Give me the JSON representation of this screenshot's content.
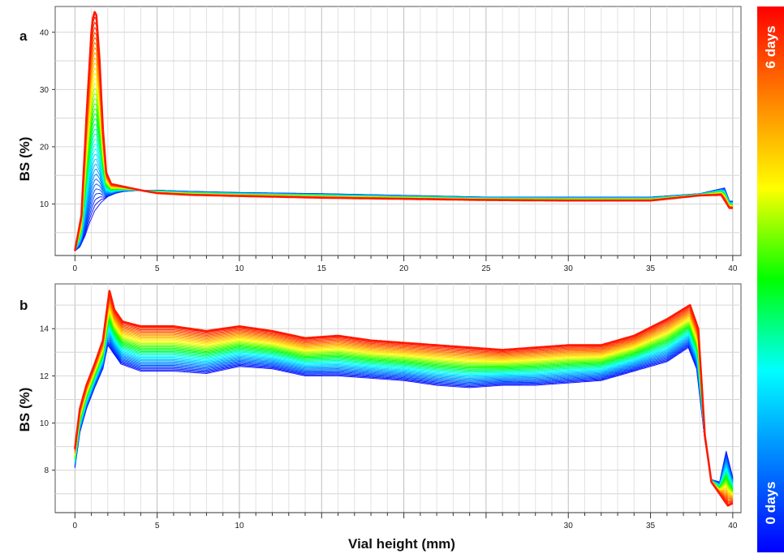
{
  "chart_data": [
    {
      "panel": "a",
      "type": "line",
      "ylabel": "BS (%)",
      "xlabel": "",
      "xlim": [
        -1.2,
        40.5
      ],
      "ylim": [
        1,
        44.5
      ],
      "xticks": [
        0,
        5,
        10,
        15,
        20,
        25,
        30,
        35,
        40
      ],
      "yticks": [
        10,
        20,
        30,
        40
      ],
      "grid": true,
      "curve_count": 40,
      "first_curve": {
        "label": "0 days",
        "color": "#1a1aff",
        "points": [
          [
            0,
            1.8
          ],
          [
            0.3,
            2.5
          ],
          [
            0.6,
            4.3
          ],
          [
            0.9,
            6.8
          ],
          [
            1.2,
            8.8
          ],
          [
            1.6,
            10.3
          ],
          [
            2.0,
            11.3
          ],
          [
            2.5,
            11.9
          ],
          [
            3.0,
            12.2
          ],
          [
            4.0,
            12.4
          ],
          [
            5,
            12.4
          ],
          [
            7,
            12.2
          ],
          [
            10,
            12.0
          ],
          [
            15,
            11.8
          ],
          [
            20,
            11.5
          ],
          [
            25,
            11.2
          ],
          [
            30,
            11.2
          ],
          [
            35,
            11.2
          ],
          [
            38,
            11.8
          ],
          [
            39.5,
            12.8
          ],
          [
            39.8,
            10.5
          ]
        ]
      },
      "last_curve": {
        "label": "6 days",
        "color": "#ff1a00",
        "points": [
          [
            0,
            1.8
          ],
          [
            0.4,
            8
          ],
          [
            0.7,
            25
          ],
          [
            1.0,
            40
          ],
          [
            1.15,
            43.8
          ],
          [
            1.3,
            43
          ],
          [
            1.5,
            35
          ],
          [
            1.7,
            23
          ],
          [
            1.9,
            15.5
          ],
          [
            2.2,
            13.5
          ],
          [
            3,
            13
          ],
          [
            4,
            12.4
          ],
          [
            5,
            11.9
          ],
          [
            7,
            11.6
          ],
          [
            10,
            11.4
          ],
          [
            15,
            11.1
          ],
          [
            20,
            10.9
          ],
          [
            25,
            10.7
          ],
          [
            30,
            10.6
          ],
          [
            35,
            10.6
          ],
          [
            38,
            11.5
          ],
          [
            39.3,
            11.6
          ],
          [
            39.8,
            9.3
          ]
        ]
      }
    },
    {
      "panel": "b",
      "type": "line",
      "ylabel": "BS (%)",
      "xlabel": "Vial height (mm)",
      "xlim": [
        -1.2,
        40.5
      ],
      "ylim": [
        6.2,
        15.9
      ],
      "xticks": [
        0,
        5,
        10,
        30,
        35,
        40
      ],
      "yticks": [
        8,
        10,
        12,
        14
      ],
      "grid": true,
      "curve_count": 40,
      "first_curve": {
        "label": "0 days",
        "color": "#1a1aff",
        "points": [
          [
            0,
            8.1
          ],
          [
            0.3,
            9.6
          ],
          [
            0.7,
            10.6
          ],
          [
            1.2,
            11.5
          ],
          [
            1.7,
            12.3
          ],
          [
            2.0,
            13.3
          ],
          [
            2.3,
            13.0
          ],
          [
            2.8,
            12.5
          ],
          [
            4,
            12.2
          ],
          [
            6,
            12.2
          ],
          [
            8,
            12.1
          ],
          [
            10,
            12.4
          ],
          [
            12,
            12.3
          ],
          [
            14,
            12.0
          ],
          [
            16,
            12.0
          ],
          [
            18,
            11.9
          ],
          [
            20,
            11.8
          ],
          [
            22,
            11.6
          ],
          [
            24,
            11.5
          ],
          [
            26,
            11.6
          ],
          [
            28,
            11.6
          ],
          [
            30,
            11.7
          ],
          [
            32,
            11.8
          ],
          [
            34,
            12.2
          ],
          [
            36,
            12.6
          ],
          [
            37.3,
            13.2
          ],
          [
            37.8,
            12.3
          ],
          [
            38.3,
            9.3
          ],
          [
            38.7,
            7.6
          ],
          [
            39.2,
            7.5
          ],
          [
            39.6,
            8.8
          ],
          [
            40,
            7.7
          ]
        ]
      },
      "last_curve": {
        "label": "6 days",
        "color": "#ff1a00",
        "points": [
          [
            0,
            8.9
          ],
          [
            0.3,
            10.6
          ],
          [
            0.7,
            11.6
          ],
          [
            1.2,
            12.5
          ],
          [
            1.7,
            13.5
          ],
          [
            2.1,
            15.6
          ],
          [
            2.4,
            14.8
          ],
          [
            2.9,
            14.3
          ],
          [
            4,
            14.1
          ],
          [
            6,
            14.1
          ],
          [
            8,
            13.9
          ],
          [
            10,
            14.1
          ],
          [
            12,
            13.9
          ],
          [
            14,
            13.6
          ],
          [
            16,
            13.7
          ],
          [
            18,
            13.5
          ],
          [
            20,
            13.4
          ],
          [
            22,
            13.3
          ],
          [
            24,
            13.2
          ],
          [
            26,
            13.1
          ],
          [
            28,
            13.2
          ],
          [
            30,
            13.3
          ],
          [
            32,
            13.3
          ],
          [
            34,
            13.7
          ],
          [
            36,
            14.4
          ],
          [
            37.4,
            15.0
          ],
          [
            37.9,
            14.0
          ],
          [
            38.3,
            9.5
          ],
          [
            38.7,
            7.5
          ],
          [
            39.2,
            7.0
          ],
          [
            39.7,
            6.5
          ],
          [
            40,
            6.6
          ]
        ]
      }
    }
  ],
  "colorbar": {
    "top_label": "6 days",
    "bottom_label": "0 days",
    "colors": [
      "#ff0000",
      "#ff8000",
      "#ffff00",
      "#00ff00",
      "#00ffff",
      "#0080ff",
      "#0000ff"
    ]
  },
  "panels": {
    "a_letter": "a",
    "b_letter": "b"
  }
}
